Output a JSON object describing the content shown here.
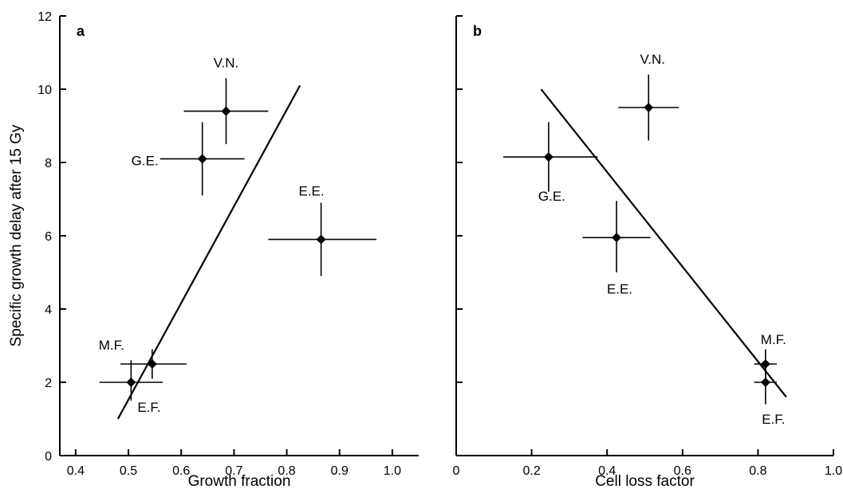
{
  "chart_data": [
    {
      "type": "scatter",
      "panel": "a",
      "xlabel": "Growth fraction",
      "ylabel": "Specific growth delay after 15 Gy",
      "xlim": [
        0.37,
        1.05
      ],
      "ylim": [
        0,
        12
      ],
      "xticks": [
        "0.4",
        "0.5",
        "0.6",
        "0.7",
        "0.8",
        "0.9",
        "1.0"
      ],
      "yticks": [
        "0",
        "2",
        "4",
        "6",
        "8",
        "10",
        "12"
      ],
      "points": [
        {
          "label": "V.N.",
          "x": 0.685,
          "y": 9.4,
          "x_err": [
            0.605,
            0.765
          ],
          "y_err": [
            8.5,
            10.3
          ]
        },
        {
          "label": "G.E.",
          "x": 0.64,
          "y": 8.1,
          "x_err": [
            0.56,
            0.72
          ],
          "y_err": [
            7.1,
            9.1
          ]
        },
        {
          "label": "E.E.",
          "x": 0.865,
          "y": 5.9,
          "x_err": [
            0.765,
            0.97
          ],
          "y_err": [
            4.9,
            6.9
          ]
        },
        {
          "label": "M.F.",
          "x": 0.545,
          "y": 2.5,
          "x_err": [
            0.485,
            0.61
          ],
          "y_err": [
            2.1,
            2.9
          ]
        },
        {
          "label": "E.F.",
          "x": 0.505,
          "y": 2.0,
          "x_err": [
            0.445,
            0.565
          ],
          "y_err": [
            1.5,
            2.6
          ]
        }
      ],
      "fit_line": {
        "x": [
          0.48,
          0.825
        ],
        "y": [
          1.0,
          10.1
        ]
      },
      "grid": false
    },
    {
      "type": "scatter",
      "panel": "b",
      "xlabel": "Cell loss factor",
      "ylabel": "",
      "xlim": [
        0,
        1.0
      ],
      "ylim": [
        0,
        12
      ],
      "xticks": [
        "0",
        "0.2",
        "0.4",
        "0.6",
        "0.8",
        "1.0"
      ],
      "yticks": [],
      "points": [
        {
          "label": "V.N.",
          "x": 0.51,
          "y": 9.5,
          "x_err": [
            0.43,
            0.59
          ],
          "y_err": [
            8.6,
            10.4
          ]
        },
        {
          "label": "G.E.",
          "x": 0.245,
          "y": 8.15,
          "x_err": [
            0.125,
            0.375
          ],
          "y_err": [
            7.2,
            9.1
          ]
        },
        {
          "label": "E.E.",
          "x": 0.425,
          "y": 5.95,
          "x_err": [
            0.335,
            0.515
          ],
          "y_err": [
            5.0,
            6.95
          ]
        },
        {
          "label": "M.F.",
          "x": 0.82,
          "y": 2.5,
          "x_err": [
            0.79,
            0.85
          ],
          "y_err": [
            2.1,
            2.9
          ]
        },
        {
          "label": "E.F.",
          "x": 0.82,
          "y": 2.0,
          "x_err": [
            0.79,
            0.85
          ],
          "y_err": [
            1.4,
            2.6
          ]
        }
      ],
      "fit_line": {
        "x": [
          0.225,
          0.875
        ],
        "y": [
          10.0,
          1.6
        ]
      },
      "grid": false
    }
  ]
}
